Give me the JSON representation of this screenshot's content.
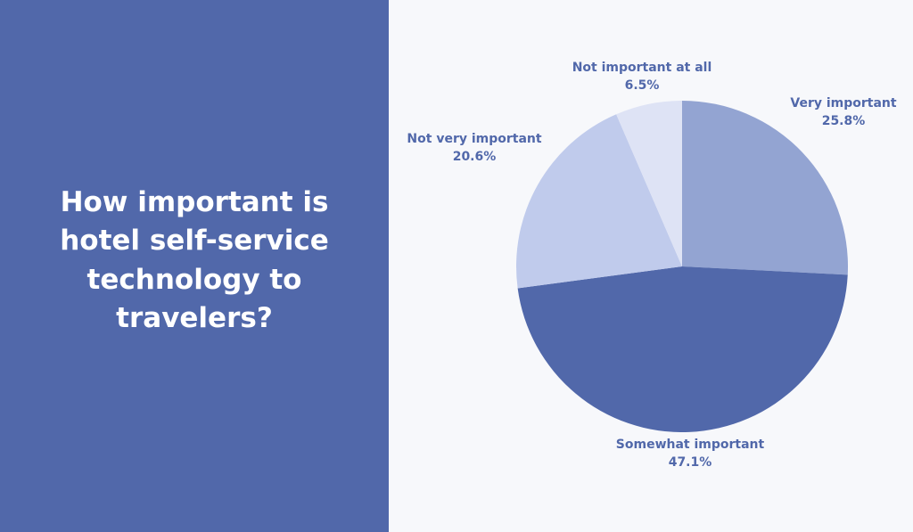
{
  "title": "How important is hotel self-service technology to travelers?",
  "colors": {
    "left_panel": "#5168aa",
    "background": "#f7f8fb",
    "label_text": "#5168aa"
  },
  "chart_data": {
    "type": "pie",
    "title": "How important is hotel self-service technology to travelers?",
    "start_angle": "12 o'clock, clockwise",
    "slices": [
      {
        "label": "Very important",
        "value": 25.8,
        "display": "25.8%",
        "color": "#93a4d2"
      },
      {
        "label": "Somewhat important",
        "value": 47.1,
        "display": "47.1%",
        "color": "#5168aa"
      },
      {
        "label": "Not very important",
        "value": 20.6,
        "display": "20.6%",
        "color": "#c0cbec"
      },
      {
        "label": "Not important at all",
        "value": 6.5,
        "display": "6.5%",
        "color": "#dee3f5"
      }
    ]
  }
}
